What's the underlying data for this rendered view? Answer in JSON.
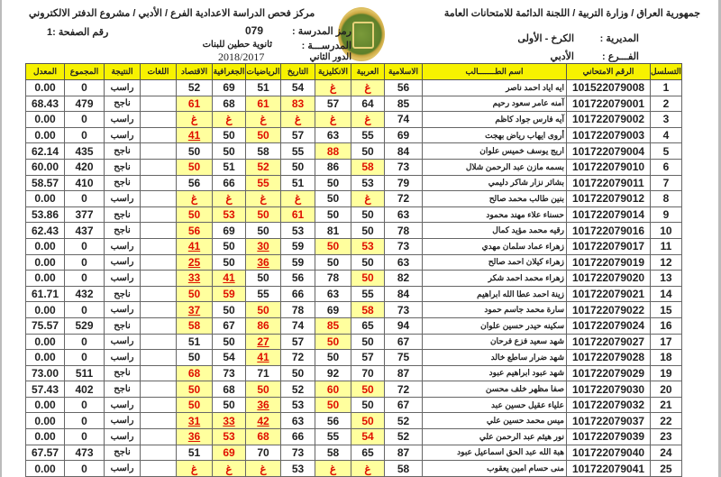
{
  "header": {
    "right_title": "جمهورية العراق / وزارة التربية / اللجنة الدائمة للامتحانات العامة",
    "left_title": "مركز فحص الدراسة الاعدادية الفرع / الأدبي / مشروع الدفتر الالكتروني",
    "directorate_label": "المديرية :",
    "directorate": "الكرخ - الأولى",
    "branch_label": "الفـــرع :",
    "branch": "الأدبي",
    "school_code_label": "رمز المدرسة :",
    "school_code": "079",
    "school_label": "المدرســـة :",
    "school": "ثانوية حطين للبنات",
    "round_label": "الدور الثاني",
    "year": "2018/2017",
    "page_label": "رقم الصفحة :1"
  },
  "columns": [
    "التسلسل",
    "الرقم الامتحاني",
    "اسم الطـــــــالب",
    "الاسلامية",
    "العربية",
    "الانكليزية",
    "التاريخ",
    "الرياضيات",
    "الجغرافية",
    "الاقتصاد",
    "اللغات",
    "النتيجة",
    "المجموع",
    "المعدل"
  ],
  "grade_legend": {
    "absent": "غ",
    "flags": {
      "0": "normal",
      "1": "highlighted",
      "2": "failed-underlined"
    }
  },
  "colors": {
    "header_bg": "#f7f200",
    "highlight_bg": "#ffff9e",
    "highlight_text": "#e01000"
  },
  "rows": [
    {
      "seq": "1",
      "id": "101522079008",
      "name": "ايه اياد احمد ناصر",
      "grades": [
        [
          "56",
          0
        ],
        [
          "غ",
          1
        ],
        [
          "غ",
          1
        ],
        [
          "54",
          0
        ],
        [
          "51",
          0
        ],
        [
          "69",
          0
        ],
        [
          "52",
          0
        ]
      ],
      "languages": "",
      "result": "راسب",
      "total": "0",
      "avg": "0.00"
    },
    {
      "seq": "2",
      "id": "101722079001",
      "name": "آمنه عامر سعود رحيم",
      "grades": [
        [
          "85",
          0
        ],
        [
          "64",
          0
        ],
        [
          "57",
          0
        ],
        [
          "83",
          1
        ],
        [
          "61",
          1
        ],
        [
          "68",
          0
        ],
        [
          "61",
          1
        ]
      ],
      "languages": "",
      "result": "ناجح",
      "total": "479",
      "avg": "68.43"
    },
    {
      "seq": "3",
      "id": "101722079002",
      "name": "آيه فارس جواد كاظم",
      "grades": [
        [
          "74",
          0
        ],
        [
          "غ",
          1
        ],
        [
          "غ",
          1
        ],
        [
          "غ",
          1
        ],
        [
          "غ",
          1
        ],
        [
          "غ",
          1
        ],
        [
          "غ",
          1
        ]
      ],
      "languages": "",
      "result": "راسب",
      "total": "0",
      "avg": "0.00"
    },
    {
      "seq": "4",
      "id": "101722079003",
      "name": "أروى ايهاب رياض بهجت",
      "grades": [
        [
          "69",
          0
        ],
        [
          "55",
          0
        ],
        [
          "63",
          0
        ],
        [
          "57",
          0
        ],
        [
          "50",
          1
        ],
        [
          "50",
          0
        ],
        [
          "41",
          2
        ]
      ],
      "languages": "",
      "result": "راسب",
      "total": "0",
      "avg": "0.00"
    },
    {
      "seq": "5",
      "id": "101722079004",
      "name": "اريج يوسف خميس علوان",
      "grades": [
        [
          "84",
          0
        ],
        [
          "50",
          0
        ],
        [
          "88",
          1
        ],
        [
          "55",
          0
        ],
        [
          "58",
          0
        ],
        [
          "50",
          0
        ],
        [
          "50",
          0
        ]
      ],
      "languages": "",
      "result": "ناجح",
      "total": "435",
      "avg": "62.14"
    },
    {
      "seq": "6",
      "id": "101722079010",
      "name": "بسمه مازن عبد الرحمن شلال",
      "grades": [
        [
          "73",
          0
        ],
        [
          "58",
          1
        ],
        [
          "86",
          0
        ],
        [
          "50",
          0
        ],
        [
          "52",
          1
        ],
        [
          "51",
          0
        ],
        [
          "50",
          1
        ]
      ],
      "languages": "",
      "result": "ناجح",
      "total": "420",
      "avg": "60.00"
    },
    {
      "seq": "7",
      "id": "101722079011",
      "name": "بشائر نزار شاكر دليمي",
      "grades": [
        [
          "79",
          0
        ],
        [
          "53",
          0
        ],
        [
          "50",
          0
        ],
        [
          "51",
          0
        ],
        [
          "55",
          1
        ],
        [
          "66",
          0
        ],
        [
          "56",
          0
        ]
      ],
      "languages": "",
      "result": "ناجح",
      "total": "410",
      "avg": "58.57"
    },
    {
      "seq": "8",
      "id": "101722079012",
      "name": "بنين طالب محمد صالح",
      "grades": [
        [
          "72",
          0
        ],
        [
          "غ",
          1
        ],
        [
          "50",
          0
        ],
        [
          "غ",
          1
        ],
        [
          "غ",
          1
        ],
        [
          "غ",
          1
        ],
        [
          "غ",
          1
        ]
      ],
      "languages": "",
      "result": "راسب",
      "total": "0",
      "avg": "0.00"
    },
    {
      "seq": "9",
      "id": "101722079014",
      "name": "حسناء علاء مهند محمود",
      "grades": [
        [
          "63",
          0
        ],
        [
          "50",
          0
        ],
        [
          "50",
          0
        ],
        [
          "61",
          1
        ],
        [
          "50",
          1
        ],
        [
          "53",
          1
        ],
        [
          "50",
          1
        ]
      ],
      "languages": "",
      "result": "ناجح",
      "total": "377",
      "avg": "53.86"
    },
    {
      "seq": "10",
      "id": "101722079016",
      "name": "رقيه محمد مؤيد كمال",
      "grades": [
        [
          "78",
          0
        ],
        [
          "50",
          0
        ],
        [
          "81",
          0
        ],
        [
          "53",
          0
        ],
        [
          "50",
          0
        ],
        [
          "69",
          0
        ],
        [
          "56",
          1
        ]
      ],
      "languages": "",
      "result": "ناجح",
      "total": "437",
      "avg": "62.43"
    },
    {
      "seq": "11",
      "id": "101722079017",
      "name": "زهراء عماد سلمان مهدي",
      "grades": [
        [
          "73",
          0
        ],
        [
          "53",
          1
        ],
        [
          "50",
          1
        ],
        [
          "59",
          0
        ],
        [
          "30",
          2
        ],
        [
          "50",
          0
        ],
        [
          "41",
          2
        ]
      ],
      "languages": "",
      "result": "راسب",
      "total": "0",
      "avg": "0.00"
    },
    {
      "seq": "12",
      "id": "101722079019",
      "name": "زهراء كيلان احمد صالح",
      "grades": [
        [
          "63",
          0
        ],
        [
          "50",
          0
        ],
        [
          "50",
          0
        ],
        [
          "59",
          0
        ],
        [
          "36",
          2
        ],
        [
          "50",
          0
        ],
        [
          "25",
          2
        ]
      ],
      "languages": "",
      "result": "راسب",
      "total": "0",
      "avg": "0.00"
    },
    {
      "seq": "13",
      "id": "101722079020",
      "name": "زهراء محمد احمد شكر",
      "grades": [
        [
          "82",
          0
        ],
        [
          "50",
          1
        ],
        [
          "78",
          0
        ],
        [
          "56",
          0
        ],
        [
          "50",
          0
        ],
        [
          "41",
          2
        ],
        [
          "33",
          2
        ]
      ],
      "languages": "",
      "result": "راسب",
      "total": "0",
      "avg": "0.00"
    },
    {
      "seq": "14",
      "id": "101722079021",
      "name": "زينة احمد عطا الله ابراهيم",
      "grades": [
        [
          "84",
          0
        ],
        [
          "55",
          0
        ],
        [
          "63",
          0
        ],
        [
          "66",
          0
        ],
        [
          "55",
          0
        ],
        [
          "59",
          1
        ],
        [
          "50",
          1
        ]
      ],
      "languages": "",
      "result": "ناجح",
      "total": "432",
      "avg": "61.71"
    },
    {
      "seq": "15",
      "id": "101722079022",
      "name": "سارة محمد جاسم حمود",
      "grades": [
        [
          "73",
          0
        ],
        [
          "58",
          1
        ],
        [
          "69",
          0
        ],
        [
          "78",
          0
        ],
        [
          "50",
          1
        ],
        [
          "50",
          0
        ],
        [
          "37",
          2
        ]
      ],
      "languages": "",
      "result": "راسب",
      "total": "0",
      "avg": "0.00"
    },
    {
      "seq": "16",
      "id": "101722079024",
      "name": "سكينه حيدر حسين علوان",
      "grades": [
        [
          "94",
          0
        ],
        [
          "65",
          0
        ],
        [
          "85",
          1
        ],
        [
          "74",
          0
        ],
        [
          "86",
          1
        ],
        [
          "67",
          0
        ],
        [
          "58",
          1
        ]
      ],
      "languages": "",
      "result": "ناجح",
      "total": "529",
      "avg": "75.57"
    },
    {
      "seq": "17",
      "id": "101722079027",
      "name": "شهد سعيد فزع فرحان",
      "grades": [
        [
          "67",
          0
        ],
        [
          "50",
          0
        ],
        [
          "50",
          1
        ],
        [
          "57",
          0
        ],
        [
          "27",
          2
        ],
        [
          "50",
          0
        ],
        [
          "51",
          0
        ]
      ],
      "languages": "",
      "result": "راسب",
      "total": "0",
      "avg": "0.00"
    },
    {
      "seq": "18",
      "id": "101722079028",
      "name": "شهد ضرار ساطع خالد",
      "grades": [
        [
          "75",
          0
        ],
        [
          "57",
          0
        ],
        [
          "50",
          0
        ],
        [
          "72",
          0
        ],
        [
          "41",
          2
        ],
        [
          "54",
          0
        ],
        [
          "50",
          0
        ]
      ],
      "languages": "",
      "result": "راسب",
      "total": "0",
      "avg": "0.00"
    },
    {
      "seq": "19",
      "id": "101722079029",
      "name": "شهد عبود ابراهيم عبود",
      "grades": [
        [
          "87",
          0
        ],
        [
          "70",
          0
        ],
        [
          "92",
          0
        ],
        [
          "50",
          0
        ],
        [
          "71",
          0
        ],
        [
          "73",
          0
        ],
        [
          "68",
          1
        ]
      ],
      "languages": "",
      "result": "ناجح",
      "total": "511",
      "avg": "73.00"
    },
    {
      "seq": "20",
      "id": "101722079030",
      "name": "صفا مظهر خلف محسن",
      "grades": [
        [
          "72",
          0
        ],
        [
          "50",
          1
        ],
        [
          "60",
          1
        ],
        [
          "52",
          0
        ],
        [
          "50",
          1
        ],
        [
          "68",
          0
        ],
        [
          "50",
          1
        ]
      ],
      "languages": "",
      "result": "ناجح",
      "total": "402",
      "avg": "57.43"
    },
    {
      "seq": "21",
      "id": "101722079032",
      "name": "علياء عقيل حسين عبد",
      "grades": [
        [
          "67",
          0
        ],
        [
          "50",
          0
        ],
        [
          "50",
          1
        ],
        [
          "53",
          0
        ],
        [
          "36",
          2
        ],
        [
          "50",
          0
        ],
        [
          "50",
          1
        ]
      ],
      "languages": "",
      "result": "راسب",
      "total": "0",
      "avg": "0.00"
    },
    {
      "seq": "22",
      "id": "101722079037",
      "name": "ميس محمد حسين علي",
      "grades": [
        [
          "52",
          0
        ],
        [
          "50",
          1
        ],
        [
          "56",
          0
        ],
        [
          "63",
          0
        ],
        [
          "42",
          2
        ],
        [
          "33",
          2
        ],
        [
          "31",
          2
        ]
      ],
      "languages": "",
      "result": "راسب",
      "total": "0",
      "avg": "0.00"
    },
    {
      "seq": "23",
      "id": "101722079039",
      "name": "نور هيثم عبد الرحمن علي",
      "grades": [
        [
          "52",
          0
        ],
        [
          "54",
          1
        ],
        [
          "55",
          0
        ],
        [
          "66",
          0
        ],
        [
          "68",
          1
        ],
        [
          "53",
          1
        ],
        [
          "36",
          2
        ]
      ],
      "languages": "",
      "result": "راسب",
      "total": "0",
      "avg": "0.00"
    },
    {
      "seq": "24",
      "id": "101722079040",
      "name": "هبة الله عبد الحق اسماعيل عبود",
      "grades": [
        [
          "87",
          0
        ],
        [
          "65",
          0
        ],
        [
          "58",
          0
        ],
        [
          "73",
          0
        ],
        [
          "70",
          0
        ],
        [
          "69",
          1
        ],
        [
          "51",
          0
        ]
      ],
      "languages": "",
      "result": "ناجح",
      "total": "473",
      "avg": "67.57"
    },
    {
      "seq": "25",
      "id": "101722079041",
      "name": "منى حسام امين يعقوب",
      "grades": [
        [
          "58",
          0
        ],
        [
          "غ",
          1
        ],
        [
          "غ",
          1
        ],
        [
          "53",
          0
        ],
        [
          "غ",
          1
        ],
        [
          "غ",
          1
        ],
        [
          "غ",
          1
        ]
      ],
      "languages": "",
      "result": "راسب",
      "total": "0",
      "avg": "0.00"
    }
  ]
}
